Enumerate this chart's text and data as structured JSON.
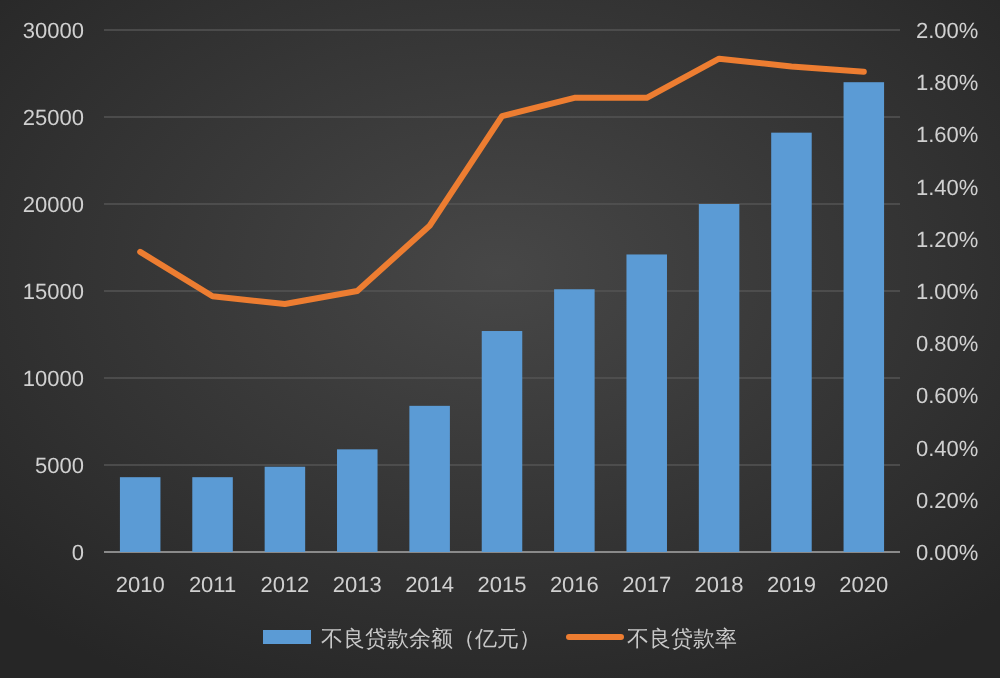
{
  "chart_data": {
    "type": "bar",
    "categories": [
      "2010",
      "2011",
      "2012",
      "2013",
      "2014",
      "2015",
      "2016",
      "2017",
      "2018",
      "2019",
      "2020"
    ],
    "series": [
      {
        "name": "不良贷款余额（亿元）",
        "color": "#5b9bd5",
        "values": [
          4300,
          4300,
          4900,
          5900,
          8400,
          12700,
          15100,
          17100,
          20000,
          24100,
          27000
        ]
      },
      {
        "name": "不良贷款率",
        "type": "line",
        "axis": "y2",
        "color": "#ed7d31",
        "values": [
          1.15,
          0.98,
          0.95,
          1.0,
          1.25,
          1.67,
          1.74,
          1.74,
          1.89,
          1.86,
          1.84
        ]
      }
    ],
    "ylim": [
      0,
      30000
    ],
    "yticks": [
      0,
      5000,
      10000,
      15000,
      20000,
      25000,
      30000
    ],
    "y2lim": [
      0,
      2
    ],
    "y2ticks": [
      {
        "value": 0,
        "label": "0.00%"
      },
      {
        "value": 0.2,
        "label": "0.20%"
      },
      {
        "value": 0.4,
        "label": "0.40%"
      },
      {
        "value": 0.6,
        "label": "0.60%"
      },
      {
        "value": 0.8,
        "label": "0.80%"
      },
      {
        "value": 1.0,
        "label": "1.00%"
      },
      {
        "value": 1.2,
        "label": "1.20%"
      },
      {
        "value": 1.4,
        "label": "1.40%"
      },
      {
        "value": 1.6,
        "label": "1.60%"
      },
      {
        "value": 1.8,
        "label": "1.80%"
      },
      {
        "value": 2.0,
        "label": "2.00%"
      }
    ],
    "grid": "y",
    "legend": "bottom"
  }
}
